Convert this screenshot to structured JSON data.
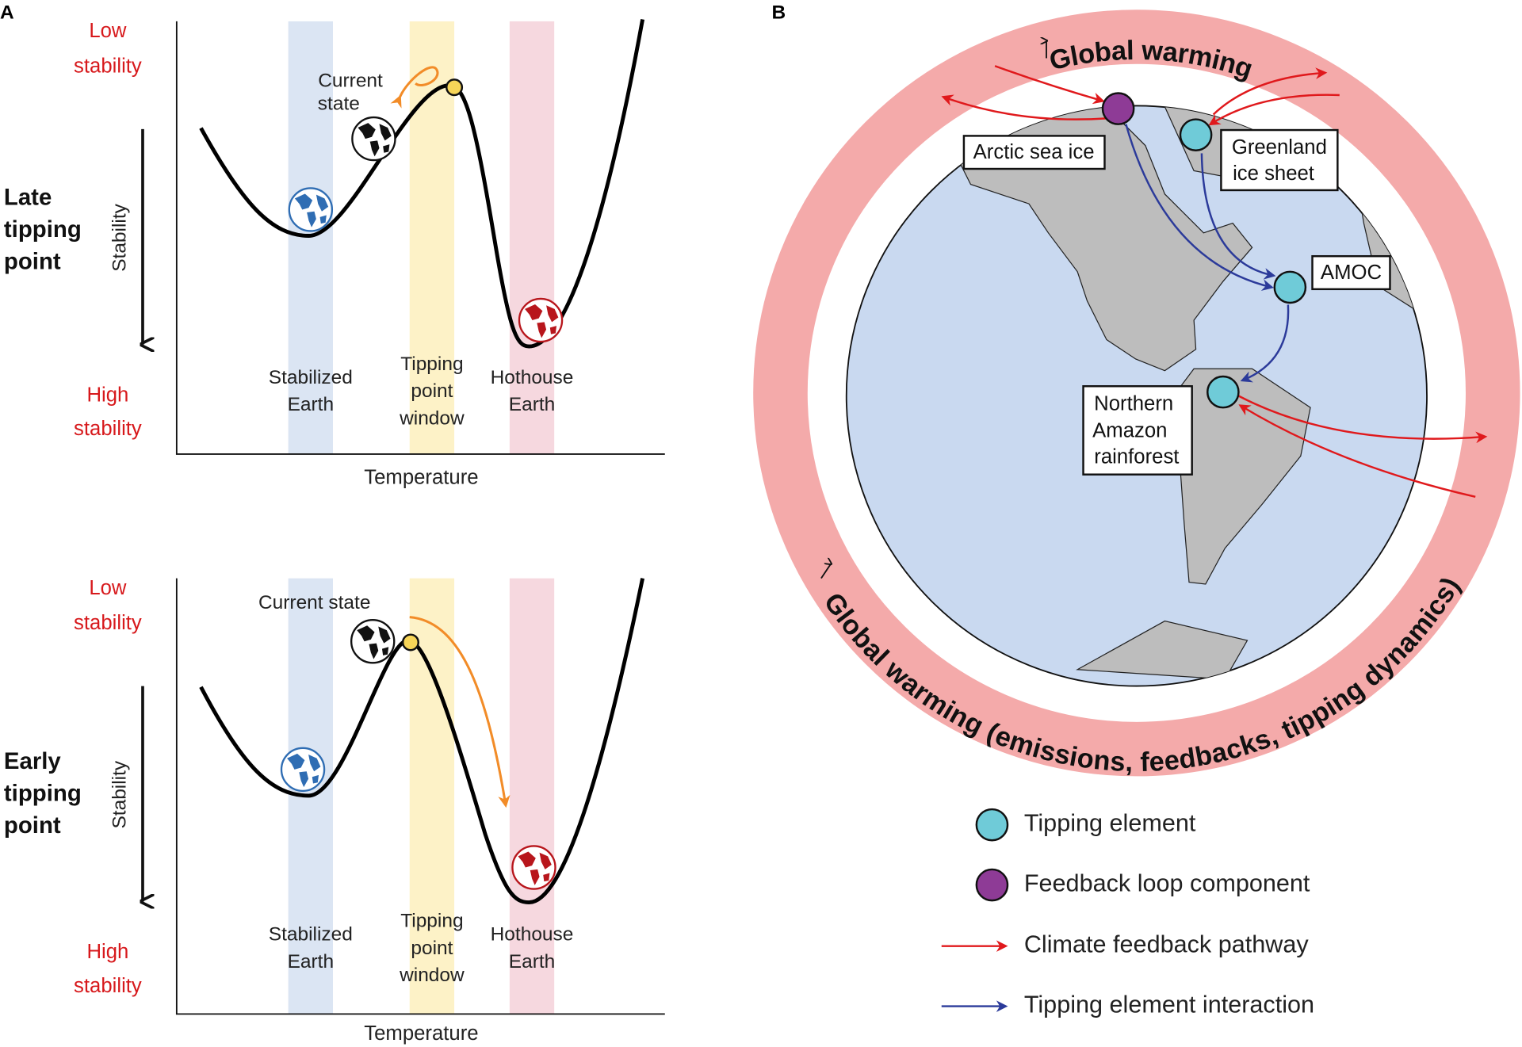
{
  "panel_a": {
    "label": "A",
    "plots": [
      {
        "row_label": [
          "Late",
          "tipping",
          "point"
        ],
        "low_stability": [
          "Low",
          "stability"
        ],
        "high_stability": [
          "High",
          "stability"
        ],
        "y_axis": "Stability",
        "x_axis": "Temperature",
        "current_state": [
          "Current",
          "state"
        ],
        "zones": [
          [
            "Stabilized",
            "Earth"
          ],
          [
            "Tipping",
            "point",
            "window"
          ],
          [
            "Hothouse",
            "Earth"
          ]
        ]
      },
      {
        "row_label": [
          "Early",
          "tipping",
          "point"
        ],
        "low_stability": [
          "Low",
          "stability"
        ],
        "high_stability": [
          "High",
          "stability"
        ],
        "y_axis": "Stability",
        "x_axis": "Temperature",
        "current_state": [
          "Current state"
        ],
        "zones": [
          [
            "Stabilized",
            "Earth"
          ],
          [
            "Tipping",
            "point",
            "window"
          ],
          [
            "Hothouse",
            "Earth"
          ]
        ]
      }
    ]
  },
  "panel_b": {
    "label": "B",
    "ring_top": "Global warming",
    "ring_bottom": "Global warming (emissions, feedbacks, tipping dynamics)",
    "nodes": [
      {
        "label": [
          "Arctic sea ice"
        ]
      },
      {
        "label": [
          "Greenland",
          "ice sheet"
        ]
      },
      {
        "label": [
          "AMOC"
        ]
      },
      {
        "label": [
          "Northern",
          "Amazon",
          "rainforest"
        ]
      }
    ],
    "legend": [
      "Tipping element",
      "Feedback loop component",
      "Climate feedback pathway",
      "Tipping element interaction"
    ]
  }
}
